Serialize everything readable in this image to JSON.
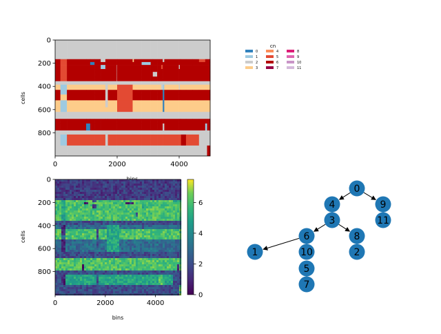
{
  "chart_data": [
    {
      "type": "heatmap",
      "panel": "copy-number-heatmap",
      "xlabel": "bins",
      "ylabel": "cells",
      "xlim": [
        0,
        5000
      ],
      "ylim": [
        1000,
        0
      ],
      "xticks": [
        0,
        2000,
        4000
      ],
      "yticks": [
        0,
        200,
        400,
        600,
        800
      ],
      "bin_breaks": [
        0,
        170,
        380,
        1000,
        1130,
        1270,
        1470,
        1620,
        1700,
        1990,
        2000,
        2500,
        2540,
        2600,
        2790,
        3080,
        3150,
        3290,
        3420,
        3470,
        3520,
        3990,
        4020,
        4060,
        4220,
        4430,
        4640,
        4840,
        4900,
        5000
      ],
      "cell_breaks": [
        0,
        165,
        190,
        215,
        250,
        275,
        315,
        355,
        385,
        430,
        470,
        520,
        580,
        620,
        680,
        720,
        780,
        815,
        860,
        910,
        960,
        1000
      ],
      "segments": [
        [
          2,
          2,
          2,
          2,
          2,
          2,
          2,
          2,
          2,
          2,
          2,
          2,
          2,
          2,
          2,
          2,
          2,
          2,
          2,
          2,
          2,
          2,
          2,
          2,
          2,
          2,
          2,
          2,
          2
        ],
        [
          6,
          5,
          6,
          6,
          6,
          6,
          2,
          6,
          6,
          6,
          6,
          3,
          6,
          6,
          6,
          6,
          6,
          6,
          6,
          2,
          6,
          6,
          6,
          6,
          6,
          6,
          5,
          6,
          6
        ],
        [
          6,
          5,
          6,
          6,
          0,
          6,
          6,
          6,
          6,
          6,
          6,
          6,
          6,
          6,
          1,
          6,
          6,
          6,
          6,
          6,
          6,
          6,
          6,
          6,
          6,
          6,
          6,
          6,
          6
        ],
        [
          6,
          5,
          6,
          6,
          6,
          6,
          1,
          6,
          6,
          2,
          6,
          6,
          6,
          6,
          6,
          6,
          6,
          6,
          5,
          6,
          6,
          2,
          6,
          6,
          6,
          6,
          6,
          6,
          6
        ],
        [
          6,
          5,
          6,
          6,
          6,
          6,
          6,
          6,
          6,
          2,
          6,
          6,
          6,
          6,
          6,
          6,
          6,
          6,
          6,
          6,
          6,
          6,
          6,
          6,
          6,
          6,
          6,
          6,
          6
        ],
        [
          6,
          5,
          6,
          6,
          6,
          6,
          6,
          6,
          6,
          2,
          6,
          6,
          6,
          6,
          6,
          6,
          2,
          6,
          6,
          6,
          6,
          6,
          6,
          6,
          6,
          6,
          6,
          6,
          6
        ],
        [
          6,
          5,
          6,
          6,
          6,
          6,
          6,
          6,
          6,
          2,
          6,
          6,
          6,
          6,
          6,
          6,
          6,
          6,
          6,
          6,
          6,
          6,
          6,
          6,
          6,
          6,
          6,
          6,
          6
        ],
        [
          2,
          2,
          2,
          2,
          2,
          2,
          2,
          2,
          2,
          2,
          2,
          2,
          2,
          2,
          2,
          2,
          2,
          2,
          2,
          2,
          2,
          2,
          2,
          2,
          2,
          2,
          2,
          2,
          2
        ],
        [
          3,
          1,
          3,
          3,
          3,
          3,
          3,
          2,
          3,
          3,
          5,
          3,
          3,
          3,
          3,
          3,
          3,
          3,
          2,
          1,
          3,
          2,
          3,
          3,
          3,
          3,
          3,
          3,
          3
        ],
        [
          6,
          1,
          6,
          6,
          6,
          6,
          6,
          2,
          6,
          6,
          5,
          6,
          6,
          6,
          6,
          6,
          6,
          6,
          6,
          0,
          6,
          6,
          6,
          6,
          6,
          6,
          6,
          6,
          6
        ],
        [
          6,
          3,
          6,
          6,
          6,
          6,
          6,
          2,
          6,
          6,
          5,
          6,
          6,
          6,
          6,
          6,
          6,
          6,
          6,
          0,
          6,
          6,
          6,
          6,
          6,
          6,
          6,
          6,
          6
        ],
        [
          3,
          1,
          3,
          3,
          3,
          3,
          3,
          2,
          3,
          3,
          5,
          3,
          3,
          3,
          3,
          3,
          3,
          3,
          3,
          0,
          3,
          3,
          3,
          3,
          3,
          3,
          3,
          3,
          3
        ],
        [
          3,
          1,
          3,
          3,
          3,
          3,
          3,
          3,
          3,
          3,
          5,
          3,
          3,
          3,
          3,
          3,
          3,
          3,
          3,
          0,
          3,
          3,
          3,
          3,
          3,
          3,
          3,
          3,
          3
        ],
        [
          2,
          2,
          2,
          2,
          2,
          2,
          2,
          2,
          2,
          2,
          2,
          2,
          2,
          2,
          2,
          2,
          2,
          2,
          2,
          2,
          2,
          2,
          2,
          2,
          2,
          2,
          2,
          2,
          2
        ],
        [
          6,
          6,
          6,
          6,
          6,
          6,
          6,
          6,
          6,
          6,
          6,
          6,
          6,
          6,
          6,
          6,
          6,
          6,
          6,
          6,
          6,
          6,
          6,
          6,
          6,
          6,
          6,
          6,
          6
        ],
        [
          6,
          6,
          6,
          0,
          6,
          6,
          6,
          6,
          6,
          6,
          6,
          6,
          6,
          6,
          6,
          6,
          6,
          6,
          6,
          2,
          6,
          6,
          6,
          6,
          6,
          6,
          6,
          1,
          6
        ],
        [
          2,
          2,
          2,
          2,
          2,
          2,
          2,
          2,
          2,
          2,
          2,
          2,
          2,
          2,
          2,
          2,
          2,
          2,
          2,
          2,
          2,
          2,
          2,
          2,
          2,
          2,
          2,
          2,
          2
        ],
        [
          2,
          1,
          5,
          5,
          5,
          5,
          5,
          2,
          5,
          5,
          5,
          5,
          5,
          5,
          5,
          5,
          5,
          5,
          5,
          5,
          5,
          5,
          5,
          6,
          5,
          5,
          2,
          2,
          2
        ],
        [
          2,
          1,
          5,
          5,
          5,
          5,
          5,
          2,
          5,
          5,
          5,
          5,
          5,
          5,
          5,
          5,
          5,
          5,
          5,
          5,
          5,
          5,
          5,
          6,
          5,
          5,
          2,
          2,
          2
        ],
        [
          2,
          2,
          2,
          2,
          2,
          2,
          2,
          2,
          2,
          2,
          2,
          2,
          2,
          2,
          2,
          2,
          2,
          2,
          2,
          2,
          2,
          2,
          2,
          2,
          2,
          2,
          2,
          2,
          6
        ],
        [
          2,
          2,
          2,
          2,
          2,
          2,
          2,
          2,
          2,
          2,
          2,
          2,
          2,
          2,
          2,
          2,
          2,
          2,
          2,
          2,
          2,
          2,
          2,
          2,
          2,
          2,
          2,
          2,
          6
        ]
      ],
      "legend": {
        "title": "cn",
        "placement": "right",
        "entries": [
          {
            "label": "0",
            "color": "#3182bd"
          },
          {
            "label": "1",
            "color": "#9ecae1"
          },
          {
            "label": "2",
            "color": "#cccccc"
          },
          {
            "label": "3",
            "color": "#fdcc8a"
          },
          {
            "label": "4",
            "color": "#fc8d59"
          },
          {
            "label": "5",
            "color": "#e34a33"
          },
          {
            "label": "6",
            "color": "#b30000"
          },
          {
            "label": "7",
            "color": "#980043"
          },
          {
            "label": "8",
            "color": "#dd1c77"
          },
          {
            "label": "9",
            "color": "#df65b0"
          },
          {
            "label": "10",
            "color": "#c994c7"
          },
          {
            "label": "11",
            "color": "#d4b9da"
          }
        ]
      }
    },
    {
      "type": "heatmap",
      "panel": "continuous-heatmap",
      "xlabel": "bins",
      "ylabel": "cells",
      "xlim": [
        0,
        5000
      ],
      "ylim": [
        1000,
        0
      ],
      "xticks": [
        0,
        2000,
        4000
      ],
      "yticks": [
        0,
        200,
        400,
        600,
        800
      ],
      "colorbar": {
        "range": [
          0,
          7.5
        ],
        "ticks": [
          0,
          2,
          4,
          6
        ],
        "colormap": "viridis"
      },
      "noise": 0.8,
      "background_level": 1.5,
      "bin_breaks": [
        0,
        170,
        380,
        1000,
        1130,
        1270,
        1470,
        1620,
        1700,
        1990,
        2000,
        2500,
        2540,
        2600,
        2790,
        3080,
        3150,
        3290,
        3420,
        3470,
        3520,
        3990,
        4020,
        4060,
        4220,
        4430,
        4640,
        4840,
        4900,
        5000
      ],
      "cell_breaks": [
        0,
        165,
        190,
        215,
        250,
        275,
        315,
        355,
        385,
        430,
        470,
        520,
        580,
        620,
        680,
        720,
        780,
        815,
        860,
        910,
        960,
        1000
      ]
    },
    {
      "type": "tree",
      "panel": "clone-tree",
      "nodes": [
        "0",
        "4",
        "9",
        "3",
        "11",
        "6",
        "8",
        "1",
        "10",
        "2",
        "5",
        "7"
      ],
      "edges": [
        [
          "0",
          "4"
        ],
        [
          "0",
          "9"
        ],
        [
          "3",
          "6"
        ],
        [
          "3",
          "8"
        ],
        [
          "6",
          "1"
        ]
      ],
      "node_color": "#1f77b4"
    }
  ]
}
